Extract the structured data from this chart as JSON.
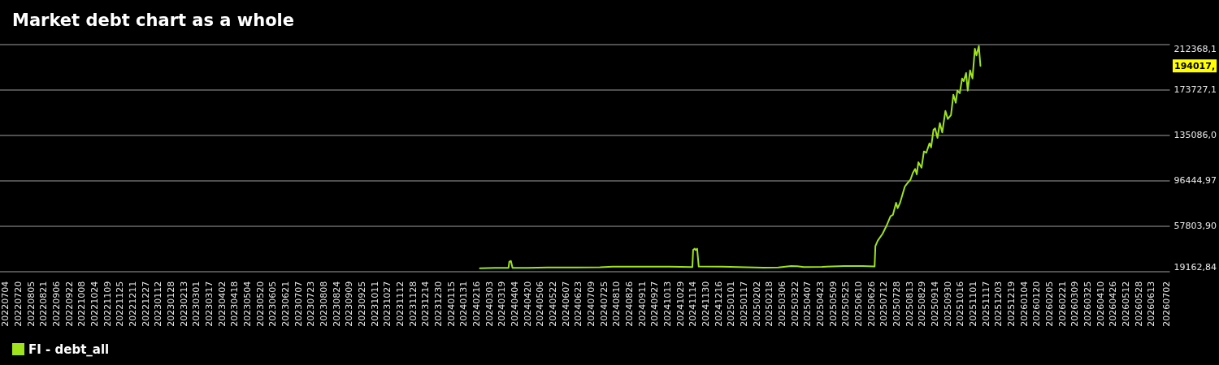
{
  "chart_data": {
    "type": "line",
    "title": "Market debt chart as a whole",
    "x": [
      "2024-02-20",
      "2024-03-10",
      "2024-03-27",
      "2024-03-28",
      "2024-03-30",
      "2024-04-01",
      "2024-04-20",
      "2024-05-15",
      "2024-06-20",
      "2024-07-20",
      "2024-08-05",
      "2024-09-10",
      "2024-10-15",
      "2024-11-13",
      "2024-11-14",
      "2024-11-16",
      "2024-11-17",
      "2024-11-19",
      "2024-11-21",
      "2024-12-20",
      "2025-01-20",
      "2025-02-10",
      "2025-03-01",
      "2025-03-17",
      "2025-03-25",
      "2025-04-02",
      "2025-04-25",
      "2025-05-23",
      "2025-06-15",
      "2025-06-30",
      "2025-07-01",
      "2025-07-04",
      "2025-07-10",
      "2025-07-15",
      "2025-07-20",
      "2025-07-23",
      "2025-07-27",
      "2025-07-29",
      "2025-08-01",
      "2025-08-04",
      "2025-08-07",
      "2025-08-11",
      "2025-08-14",
      "2025-08-17",
      "2025-08-20",
      "2025-08-22",
      "2025-08-24",
      "2025-08-28",
      "2025-08-31",
      "2025-09-03",
      "2025-09-07",
      "2025-09-09",
      "2025-09-12",
      "2025-09-14",
      "2025-09-17",
      "2025-09-20",
      "2025-09-23",
      "2025-09-27",
      "2025-09-30",
      "2025-10-04",
      "2025-10-07",
      "2025-10-10",
      "2025-10-12",
      "2025-10-15",
      "2025-10-18",
      "2025-10-20",
      "2025-10-23",
      "2025-10-25",
      "2025-10-28",
      "2025-10-31",
      "2025-11-03",
      "2025-11-05",
      "2025-11-08",
      "2025-11-10"
    ],
    "series": [
      {
        "name": "FI - debt_all",
        "color": "#9ee31c",
        "values": [
          21900,
          22200,
          22300,
          27500,
          28100,
          22300,
          22200,
          22600,
          22500,
          22700,
          23300,
          23200,
          23300,
          23000,
          37600,
          38500,
          37400,
          38500,
          23400,
          23200,
          22800,
          22400,
          22600,
          23800,
          23600,
          22900,
          23100,
          23800,
          23700,
          23500,
          40800,
          45400,
          51200,
          58100,
          66100,
          67300,
          77600,
          73000,
          77600,
          84500,
          91400,
          94900,
          97100,
          102900,
          106400,
          101800,
          112100,
          107500,
          121300,
          120200,
          128200,
          124700,
          139700,
          140900,
          132800,
          145400,
          137400,
          155800,
          148900,
          152300,
          169600,
          162700,
          173000,
          170800,
          183400,
          181100,
          188000,
          173000,
          190300,
          183400,
          208700,
          203000,
          211000,
          194017
        ]
      }
    ],
    "xlim": [
      "2022-06-27",
      "2026-07-06"
    ],
    "xticks": [
      {
        "value": "2022-07-04",
        "label": "20220704"
      },
      {
        "value": "2022-07-20",
        "label": "20220720"
      },
      {
        "value": "2022-08-05",
        "label": "20220805"
      },
      {
        "value": "2022-08-21",
        "label": "20220821"
      },
      {
        "value": "2022-09-06",
        "label": "20220906"
      },
      {
        "value": "2022-09-22",
        "label": "20220922"
      },
      {
        "value": "2022-10-08",
        "label": "20221008"
      },
      {
        "value": "2022-10-24",
        "label": "20221024"
      },
      {
        "value": "2022-11-09",
        "label": "20221109"
      },
      {
        "value": "2022-11-25",
        "label": "20221125"
      },
      {
        "value": "2022-12-11",
        "label": "20221211"
      },
      {
        "value": "2022-12-27",
        "label": "20221227"
      },
      {
        "value": "2023-01-12",
        "label": "20230112"
      },
      {
        "value": "2023-01-28",
        "label": "20230128"
      },
      {
        "value": "2023-02-13",
        "label": "20230213"
      },
      {
        "value": "2023-03-01",
        "label": "20230301"
      },
      {
        "value": "2023-03-17",
        "label": "20230317"
      },
      {
        "value": "2023-04-02",
        "label": "20230402"
      },
      {
        "value": "2023-04-18",
        "label": "20230418"
      },
      {
        "value": "2023-05-04",
        "label": "20230504"
      },
      {
        "value": "2023-05-20",
        "label": "20230520"
      },
      {
        "value": "2023-06-05",
        "label": "20230605"
      },
      {
        "value": "2023-06-21",
        "label": "20230621"
      },
      {
        "value": "2023-07-07",
        "label": "20230707"
      },
      {
        "value": "2023-07-23",
        "label": "20230723"
      },
      {
        "value": "2023-08-08",
        "label": "20230808"
      },
      {
        "value": "2023-08-24",
        "label": "20230824"
      },
      {
        "value": "2023-09-09",
        "label": "20230909"
      },
      {
        "value": "2023-09-25",
        "label": "20230925"
      },
      {
        "value": "2023-10-11",
        "label": "20231011"
      },
      {
        "value": "2023-10-27",
        "label": "20231027"
      },
      {
        "value": "2023-11-12",
        "label": "20231112"
      },
      {
        "value": "2023-11-28",
        "label": "20231128"
      },
      {
        "value": "2023-12-14",
        "label": "20231214"
      },
      {
        "value": "2023-12-30",
        "label": "20231230"
      },
      {
        "value": "2024-01-15",
        "label": "20240115"
      },
      {
        "value": "2024-01-31",
        "label": "20240131"
      },
      {
        "value": "2024-02-16",
        "label": "20240216"
      },
      {
        "value": "2024-03-03",
        "label": "20240303"
      },
      {
        "value": "2024-03-19",
        "label": "20240319"
      },
      {
        "value": "2024-04-04",
        "label": "20240404"
      },
      {
        "value": "2024-04-20",
        "label": "20240420"
      },
      {
        "value": "2024-05-06",
        "label": "20240506"
      },
      {
        "value": "2024-05-22",
        "label": "20240522"
      },
      {
        "value": "2024-06-07",
        "label": "20240607"
      },
      {
        "value": "2024-06-23",
        "label": "20240623"
      },
      {
        "value": "2024-07-09",
        "label": "20240709"
      },
      {
        "value": "2024-07-25",
        "label": "20240725"
      },
      {
        "value": "2024-08-10",
        "label": "20240810"
      },
      {
        "value": "2024-08-26",
        "label": "20240826"
      },
      {
        "value": "2024-09-11",
        "label": "20240911"
      },
      {
        "value": "2024-09-27",
        "label": "20240927"
      },
      {
        "value": "2024-10-13",
        "label": "20241013"
      },
      {
        "value": "2024-10-29",
        "label": "20241029"
      },
      {
        "value": "2024-11-14",
        "label": "20241114"
      },
      {
        "value": "2024-11-30",
        "label": "20241130"
      },
      {
        "value": "2024-12-16",
        "label": "20241216"
      },
      {
        "value": "2025-01-01",
        "label": "20250101"
      },
      {
        "value": "2025-01-17",
        "label": "20250117"
      },
      {
        "value": "2025-02-02",
        "label": "20250202"
      },
      {
        "value": "2025-02-18",
        "label": "20250218"
      },
      {
        "value": "2025-03-06",
        "label": "20250306"
      },
      {
        "value": "2025-03-22",
        "label": "20250322"
      },
      {
        "value": "2025-04-07",
        "label": "20250407"
      },
      {
        "value": "2025-04-23",
        "label": "20250423"
      },
      {
        "value": "2025-05-09",
        "label": "20250509"
      },
      {
        "value": "2025-05-25",
        "label": "20250525"
      },
      {
        "value": "2025-06-10",
        "label": "20250610"
      },
      {
        "value": "2025-06-26",
        "label": "20250626"
      },
      {
        "value": "2025-07-12",
        "label": "20250712"
      },
      {
        "value": "2025-07-28",
        "label": "20250728"
      },
      {
        "value": "2025-08-13",
        "label": "20250813"
      },
      {
        "value": "2025-08-29",
        "label": "20250829"
      },
      {
        "value": "2025-09-14",
        "label": "20250914"
      },
      {
        "value": "2025-09-30",
        "label": "20250930"
      },
      {
        "value": "2025-10-16",
        "label": "20251016"
      },
      {
        "value": "2025-11-01",
        "label": "20251101"
      },
      {
        "value": "2025-11-17",
        "label": "20251117"
      },
      {
        "value": "2025-12-03",
        "label": "20251203"
      },
      {
        "value": "2025-12-19",
        "label": "20251219"
      },
      {
        "value": "2026-01-04",
        "label": "20260104"
      },
      {
        "value": "2026-01-20",
        "label": "20260120"
      },
      {
        "value": "2026-02-05",
        "label": "20260205"
      },
      {
        "value": "2026-02-21",
        "label": "20260221"
      },
      {
        "value": "2026-03-09",
        "label": "20260309"
      },
      {
        "value": "2026-03-25",
        "label": "20260325"
      },
      {
        "value": "2026-04-10",
        "label": "20260410"
      },
      {
        "value": "2026-04-26",
        "label": "20260426"
      },
      {
        "value": "2026-05-12",
        "label": "20260512"
      },
      {
        "value": "2026-05-28",
        "label": "20260528"
      },
      {
        "value": "2026-06-13",
        "label": "20260613"
      },
      {
        "value": "2026-07-02",
        "label": "20260702"
      }
    ],
    "ylim": [
      19162.84,
      212368.1
    ],
    "yticks": [
      {
        "value": 19162.84,
        "label": "19162,84"
      },
      {
        "value": 57803.9,
        "label": "57803,90"
      },
      {
        "value": 96444.97,
        "label": "96444,97"
      },
      {
        "value": 135086.0,
        "label": "135086,0"
      },
      {
        "value": 173727.1,
        "label": "173727,1"
      },
      {
        "value": 212368.1,
        "label": "212368,1"
      }
    ],
    "grid": "y",
    "legend": "bottom left",
    "marker": "none",
    "line_style": "solid",
    "annotations": [
      "194017,"
    ]
  }
}
